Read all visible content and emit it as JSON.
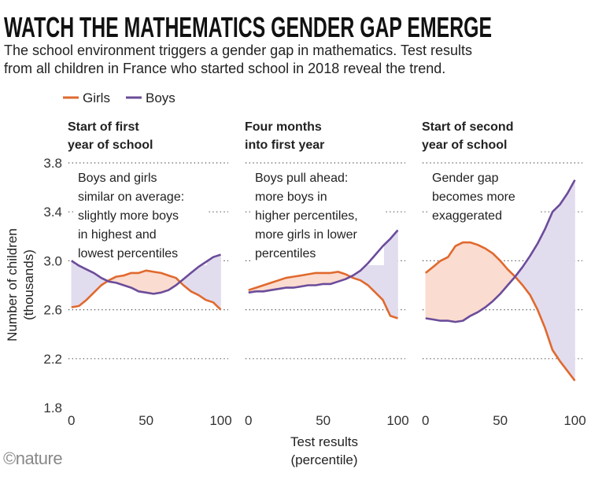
{
  "title": "WATCH THE MATHEMATICS GENDER GAP EMERGE",
  "subtitle": [
    "The school environment triggers a gender gap in mathematics. Test results",
    "from all children in France who started school in 2018 reveal the trend."
  ],
  "y_label": [
    "Number of children",
    "(thousands)"
  ],
  "x_label": [
    "Test results",
    "(percentile)"
  ],
  "credit": "©nature",
  "chart_data": [
    {
      "type": "line",
      "title": [
        "Start of first",
        "year of school"
      ],
      "annotation": [
        "Boys and girls",
        "similar on average:",
        "slightly more boys",
        "in highest and",
        "lowest percentiles"
      ],
      "x": [
        0,
        5,
        10,
        15,
        20,
        25,
        30,
        35,
        40,
        45,
        50,
        55,
        60,
        65,
        70,
        75,
        80,
        85,
        90,
        95,
        100
      ],
      "series": [
        {
          "name": "Girls",
          "color": "#e0692e",
          "fill": "#fbdcd0",
          "values": [
            2.62,
            2.63,
            2.68,
            2.74,
            2.8,
            2.84,
            2.87,
            2.88,
            2.9,
            2.9,
            2.92,
            2.91,
            2.9,
            2.88,
            2.86,
            2.8,
            2.75,
            2.72,
            2.68,
            2.66,
            2.6
          ]
        },
        {
          "name": "Boys",
          "color": "#6b4c9a",
          "fill": "#e2dcef",
          "values": [
            3.0,
            2.96,
            2.93,
            2.9,
            2.86,
            2.83,
            2.82,
            2.8,
            2.78,
            2.75,
            2.74,
            2.73,
            2.74,
            2.76,
            2.8,
            2.85,
            2.9,
            2.95,
            2.99,
            3.03,
            3.05
          ]
        }
      ],
      "xlim": [
        -2,
        105
      ],
      "ylim": [
        1.8,
        3.8
      ],
      "xticks": [
        0,
        50,
        100
      ],
      "yticks": [
        1.8,
        2.2,
        2.6,
        {
          "value": 3,
          "label": "3.0"
        },
        3.4,
        3.8
      ],
      "grid": true
    },
    {
      "type": "line",
      "title": [
        "Four months",
        "into first year"
      ],
      "annotation": [
        "Boys pull ahead:",
        "more boys in",
        "higher percentiles,",
        "more girls in lower",
        "percentiles"
      ],
      "x": [
        0,
        5,
        10,
        15,
        20,
        25,
        30,
        35,
        40,
        45,
        50,
        55,
        60,
        65,
        70,
        75,
        80,
        85,
        90,
        95,
        100
      ],
      "series": [
        {
          "name": "Girls",
          "color": "#e0692e",
          "fill": "#fbdcd0",
          "values": [
            2.76,
            2.78,
            2.8,
            2.82,
            2.84,
            2.86,
            2.87,
            2.88,
            2.89,
            2.9,
            2.9,
            2.9,
            2.91,
            2.89,
            2.86,
            2.84,
            2.8,
            2.74,
            2.68,
            2.55,
            2.53
          ]
        },
        {
          "name": "Boys",
          "color": "#6b4c9a",
          "fill": "#e2dcef",
          "values": [
            2.74,
            2.75,
            2.75,
            2.76,
            2.77,
            2.78,
            2.78,
            2.79,
            2.8,
            2.8,
            2.81,
            2.81,
            2.83,
            2.85,
            2.88,
            2.92,
            2.98,
            3.05,
            3.12,
            3.18,
            3.25
          ]
        }
      ],
      "xlim": [
        -2,
        105
      ],
      "ylim": [
        1.8,
        3.8
      ],
      "xticks": [
        0,
        50,
        100
      ],
      "yticks": [
        1.8,
        2.2,
        2.6,
        3,
        3.4,
        3.8
      ],
      "grid": true
    },
    {
      "type": "line",
      "title": [
        "Start of second",
        "year of school"
      ],
      "annotation": [
        "Gender gap",
        "becomes more",
        "exaggerated"
      ],
      "x": [
        0,
        5,
        10,
        15,
        20,
        25,
        30,
        35,
        40,
        45,
        50,
        55,
        60,
        65,
        70,
        75,
        80,
        85,
        90,
        95,
        100
      ],
      "series": [
        {
          "name": "Girls",
          "color": "#e0692e",
          "fill": "#fbdcd0",
          "values": [
            2.9,
            2.95,
            3.0,
            3.03,
            3.12,
            3.15,
            3.15,
            3.13,
            3.1,
            3.06,
            3.0,
            2.93,
            2.87,
            2.8,
            2.72,
            2.6,
            2.45,
            2.27,
            2.18,
            2.1,
            2.02
          ]
        },
        {
          "name": "Boys",
          "color": "#6b4c9a",
          "fill": "#e2dcef",
          "values": [
            2.53,
            2.52,
            2.51,
            2.51,
            2.5,
            2.51,
            2.55,
            2.58,
            2.62,
            2.67,
            2.73,
            2.8,
            2.87,
            2.95,
            3.04,
            3.14,
            3.26,
            3.4,
            3.46,
            3.55,
            3.66
          ]
        }
      ],
      "xlim": [
        -2,
        105
      ],
      "ylim": [
        1.8,
        3.8
      ],
      "xticks": [
        0,
        50,
        100
      ],
      "yticks": [
        1.8,
        2.2,
        2.6,
        3,
        3.4,
        3.8
      ],
      "grid": true
    }
  ]
}
